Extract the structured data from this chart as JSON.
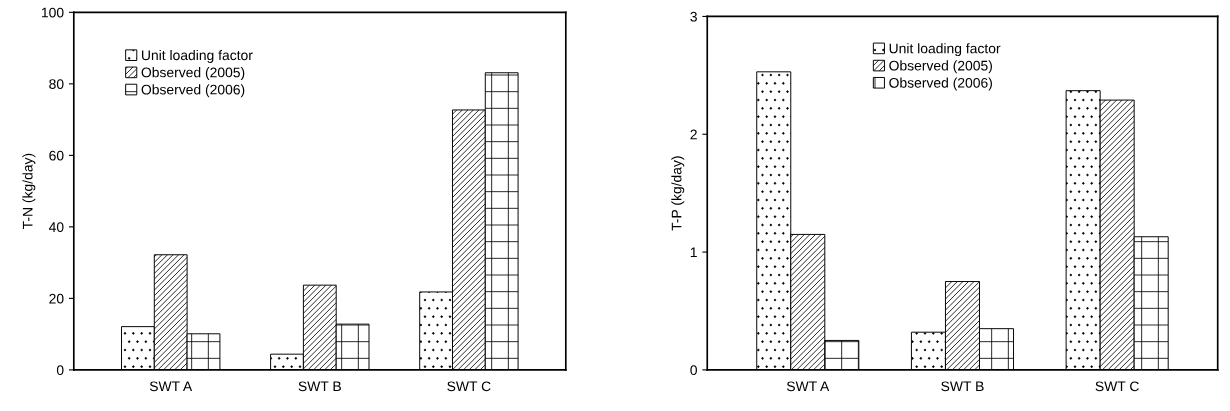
{
  "chart_data": [
    {
      "type": "bar",
      "ylabel": "T-N (kg/day)",
      "categories": [
        "SWT A",
        "SWT B",
        "SWT C"
      ],
      "ylim": [
        0,
        100
      ],
      "yticks": [
        0,
        20,
        40,
        60,
        80,
        100
      ],
      "grid": false,
      "legend": "top left",
      "series": [
        {
          "name": "Unit loading factor",
          "color": "#000000",
          "values": [
            12.1,
            4.4,
            21.8
          ]
        },
        {
          "name": "Observed (2005)",
          "color": "#000000",
          "values": [
            32.2,
            23.7,
            72.7
          ]
        },
        {
          "name": "Observed (2006)",
          "color": "#000000",
          "values": [
            10.1,
            12.8,
            83.1
          ]
        }
      ]
    },
    {
      "type": "bar",
      "ylabel": "T-P (kg/day)",
      "categories": [
        "SWT A",
        "SWT B",
        "SWT C"
      ],
      "ylim": [
        0,
        3
      ],
      "yticks": [
        0,
        1,
        2,
        3
      ],
      "grid": false,
      "legend": "top",
      "series": [
        {
          "name": "Unit loading factor",
          "color": "#000000",
          "values": [
            2.53,
            0.32,
            2.37
          ]
        },
        {
          "name": "Observed (2005)",
          "color": "#000000",
          "values": [
            1.15,
            0.75,
            2.29
          ]
        },
        {
          "name": "Observed (2006)",
          "color": "#000000",
          "values": [
            0.25,
            0.35,
            1.13
          ]
        }
      ]
    }
  ]
}
